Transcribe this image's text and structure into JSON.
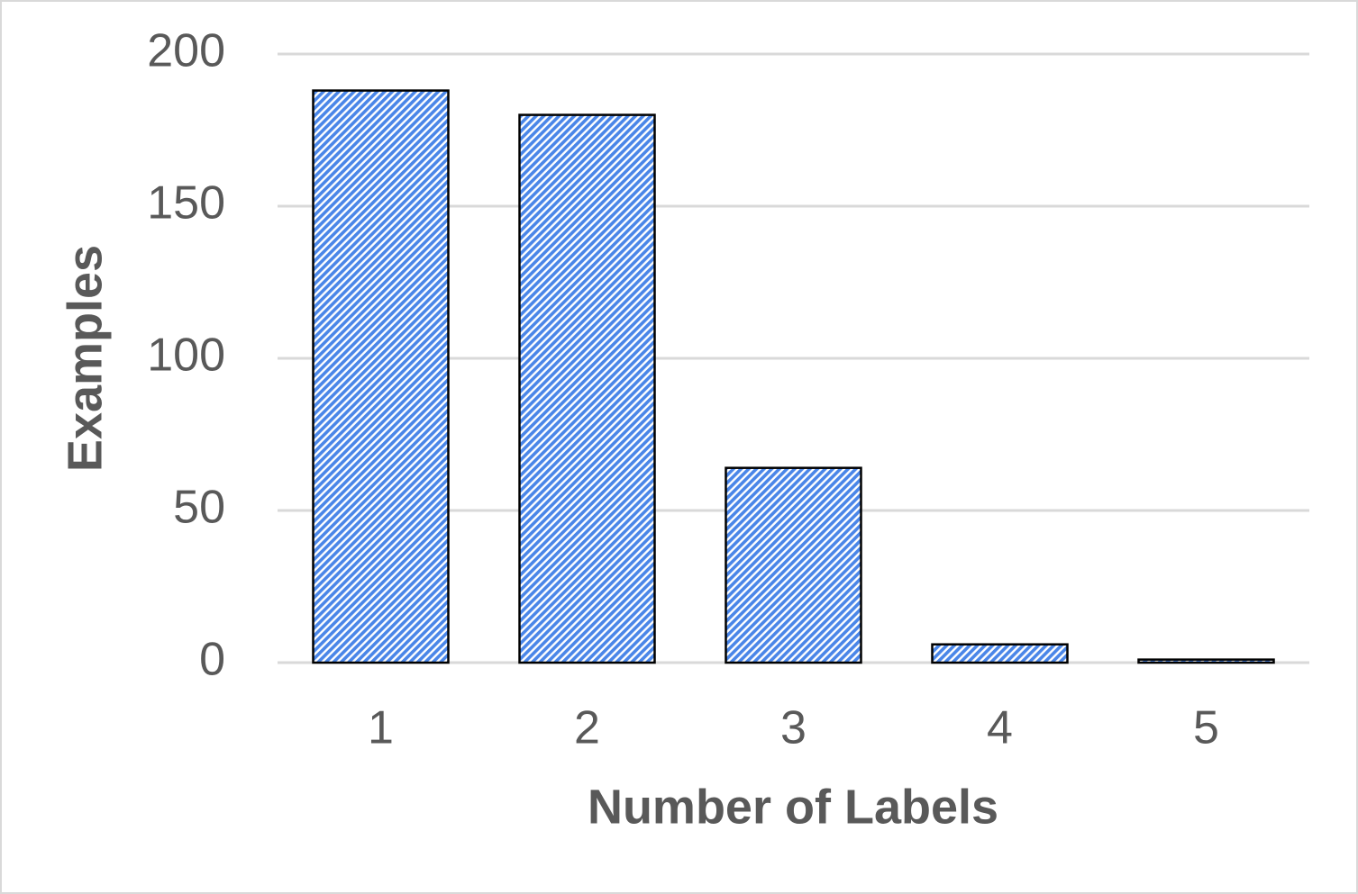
{
  "chart_data": {
    "type": "bar",
    "x_label": "Number of Labels",
    "y_label": "Examples",
    "categories": [
      "1",
      "2",
      "3",
      "4",
      "5"
    ],
    "values": [
      188,
      180,
      64,
      6,
      1
    ],
    "color": "#4a86e8",
    "ylim": [
      0,
      200
    ],
    "yticks": [
      0,
      50,
      100,
      150,
      200
    ],
    "grid": true
  }
}
